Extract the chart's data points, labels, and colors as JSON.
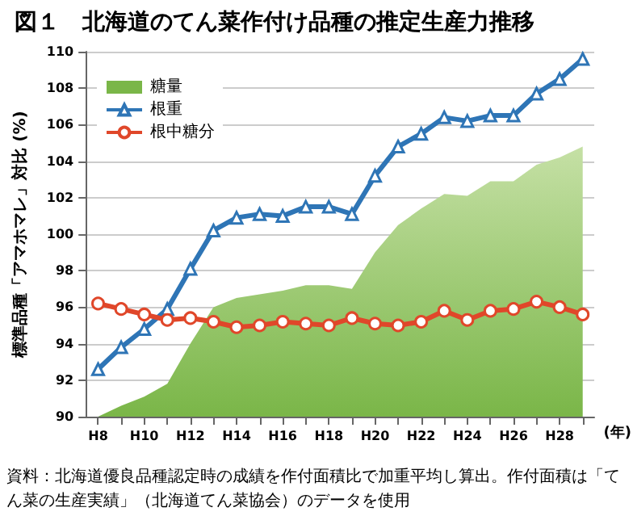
{
  "chart_data": {
    "type": "line",
    "title": "図１　北海道のてん菜作付け品種の推定生産力推移",
    "xlabel": "(年)",
    "ylabel": "標準品種「アマホマレ」対比 (%)",
    "categories": [
      "H8",
      null,
      "H10",
      null,
      "H12",
      null,
      "H14",
      null,
      "H16",
      null,
      "H18",
      null,
      "H20",
      null,
      "H22",
      null,
      "H24",
      null,
      "H26",
      null,
      "H28",
      null
    ],
    "series": [
      {
        "name": "糖量",
        "type": "area",
        "color": "#7ab648",
        "marker": "none",
        "values": [
          90.0,
          90.6,
          91.1,
          91.8,
          94.0,
          96.0,
          96.5,
          96.7,
          96.9,
          97.2,
          97.2,
          97.0,
          99.0,
          100.5,
          101.4,
          102.2,
          102.1,
          102.9,
          102.9,
          103.8,
          104.2,
          104.8
        ]
      },
      {
        "name": "根重",
        "type": "line",
        "color": "#2e75b6",
        "marker": "triangle",
        "values": [
          92.6,
          93.8,
          94.8,
          95.9,
          98.1,
          100.2,
          100.9,
          101.1,
          101.0,
          101.5,
          101.5,
          101.1,
          103.2,
          104.8,
          105.5,
          106.4,
          106.2,
          106.5,
          106.5,
          107.7,
          108.5,
          109.6
        ]
      },
      {
        "name": "根中糖分",
        "type": "line",
        "color": "#e0472a",
        "marker": "circle",
        "values": [
          96.2,
          95.9,
          95.6,
          95.3,
          95.4,
          95.2,
          94.9,
          95.0,
          95.2,
          95.1,
          95.0,
          95.4,
          95.1,
          95.0,
          95.2,
          95.8,
          95.3,
          95.8,
          95.9,
          96.3,
          96.0,
          95.6
        ]
      }
    ],
    "ylim": [
      90,
      110
    ],
    "yticks": [
      90,
      92,
      94,
      96,
      98,
      100,
      102,
      104,
      106,
      108,
      110
    ],
    "grid": "y",
    "legend": "top left",
    "annotations": [
      "資料：北海道優良品種認定時の成績を作付面積比で加重平均し算出。作付面積は「てん菜の生産実績」（北海道てん菜協会）のデータを使用"
    ]
  }
}
